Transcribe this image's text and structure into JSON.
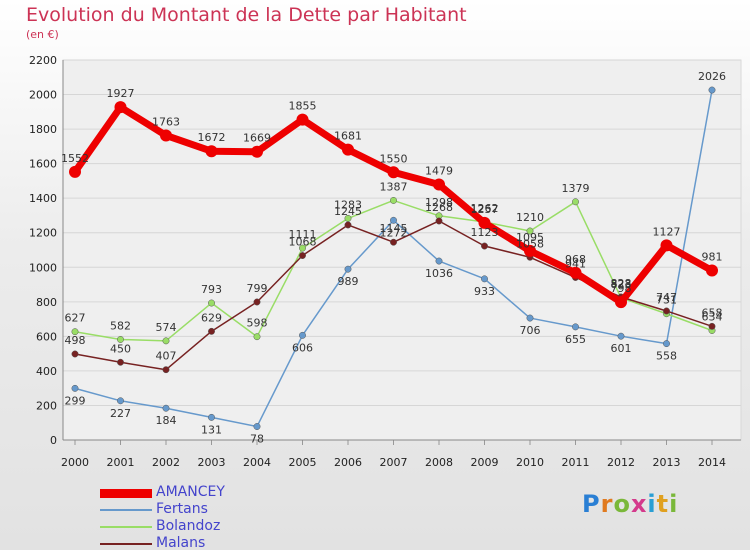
{
  "title": "Evolution du Montant de la Dette par Habitant",
  "unit": "(en €)",
  "logo": "Proxiti",
  "logo_colors": [
    "#2a7fd4",
    "#e07a1f",
    "#7ab83a",
    "#d43a8c",
    "#2a9fd4",
    "#e0a01f",
    "#7ab83a"
  ],
  "chart_data": {
    "type": "line",
    "title": "Evolution du Montant de la Dette par Habitant",
    "ylabel": "(en €)",
    "xlabel": "",
    "x": [
      "2000",
      "2001",
      "2002",
      "2003",
      "2004",
      "2005",
      "2006",
      "2007",
      "2008",
      "2009",
      "2010",
      "2011",
      "2012",
      "2013",
      "2014"
    ],
    "ylim": [
      0,
      2200
    ],
    "yticks": [
      0,
      200,
      400,
      600,
      800,
      1000,
      1200,
      1400,
      1600,
      1800,
      2000,
      2200
    ],
    "grid": true,
    "legend_position": "bottom-left",
    "series": [
      {
        "name": "Fertans",
        "color": "#6699cc",
        "values": [
          299,
          227,
          184,
          131,
          78,
          606,
          989,
          1272,
          1036,
          933,
          706,
          655,
          601,
          558,
          2026
        ]
      },
      {
        "name": "Bolandoz",
        "color": "#99dd66",
        "values": [
          627,
          582,
          574,
          793,
          598,
          1111,
          1283,
          1387,
          1298,
          1262,
          1210,
          1379,
          823,
          731,
          634
        ]
      },
      {
        "name": "Malans",
        "color": "#772222",
        "values": [
          498,
          450,
          407,
          629,
          799,
          1068,
          1245,
          1145,
          1268,
          1123,
          1058,
          941,
          828,
          747,
          658
        ]
      },
      {
        "name": "AMANCEY",
        "color": "#ee0000",
        "values": [
          1552,
          1927,
          1763,
          1672,
          1669,
          1855,
          1681,
          1550,
          1479,
          1257,
          1095,
          968,
          798,
          1127,
          981
        ]
      }
    ]
  }
}
